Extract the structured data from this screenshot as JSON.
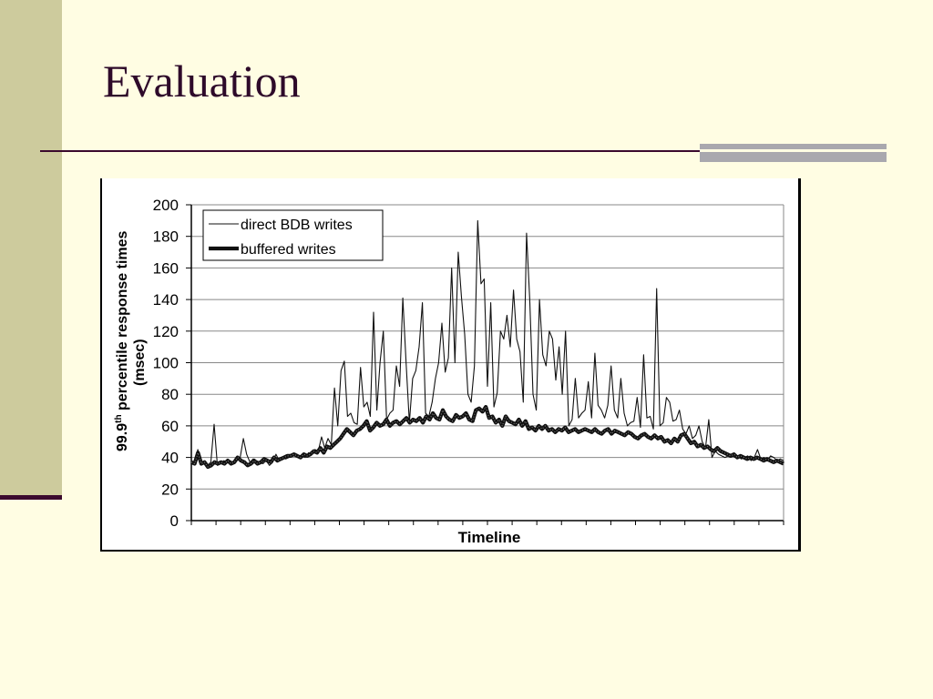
{
  "slide": {
    "title": "Evaluation"
  },
  "colors": {
    "background": "#FFFDE3",
    "band": "#CDCB9D",
    "accent": "#3B0A2E",
    "title": "#2E0A2A"
  },
  "chart_data": {
    "type": "line",
    "title": "",
    "xlabel": "Timeline",
    "ylabel_line1": "99.9",
    "ylabel_sup": "th",
    "ylabel_rest": " percentile response times",
    "ylabel_line2": "(msec)",
    "ylim": [
      0,
      200
    ],
    "yticks": [
      "0",
      "20",
      "40",
      "60",
      "80",
      "100",
      "120",
      "140",
      "160",
      "180",
      "200"
    ],
    "grid": true,
    "legend": "top-left",
    "x_ticks": 24,
    "series": [
      {
        "name": "direct BDB writes",
        "style": "thin",
        "values": [
          38,
          36,
          45,
          36,
          37,
          35,
          37,
          61,
          35,
          36,
          38,
          37,
          38,
          36,
          38,
          40,
          52,
          42,
          37,
          39,
          38,
          37,
          36,
          38,
          35,
          37,
          42,
          38,
          40,
          39,
          40,
          41,
          42,
          40,
          41,
          40,
          43,
          42,
          45,
          44,
          53,
          46,
          52,
          48,
          84,
          60,
          95,
          101,
          66,
          68,
          62,
          61,
          97,
          72,
          75,
          66,
          132,
          70,
          100,
          120,
          64,
          68,
          70,
          98,
          85,
          141,
          100,
          62,
          90,
          95,
          110,
          138,
          68,
          66,
          75,
          90,
          100,
          125,
          94,
          103,
          160,
          100,
          170,
          142,
          118,
          80,
          75,
          98,
          190,
          150,
          153,
          85,
          138,
          72,
          81,
          120,
          115,
          130,
          110,
          146,
          115,
          107,
          75,
          182,
          140,
          80,
          70,
          140,
          105,
          98,
          120,
          115,
          89,
          110,
          80,
          120,
          60,
          64,
          90,
          65,
          68,
          70,
          88,
          65,
          106,
          73,
          70,
          65,
          73,
          98,
          70,
          65,
          90,
          68,
          60,
          62,
          63,
          78,
          59,
          105,
          65,
          66,
          58,
          147,
          60,
          62,
          78,
          75,
          63,
          64,
          70,
          58,
          55,
          60,
          52,
          54,
          60,
          50,
          46,
          64,
          40,
          44,
          42,
          41,
          40,
          41,
          42,
          40,
          41,
          39,
          40,
          41,
          38,
          40,
          45,
          39,
          40,
          38,
          41,
          40,
          38,
          39,
          38
        ]
      },
      {
        "name": "buffered writes",
        "style": "thick",
        "values": [
          37,
          36,
          43,
          36,
          37,
          34,
          35,
          37,
          36,
          37,
          36,
          38,
          36,
          37,
          40,
          38,
          37,
          35,
          36,
          38,
          36,
          37,
          39,
          38,
          37,
          40,
          38,
          39,
          40,
          41,
          41,
          42,
          41,
          40,
          42,
          41,
          42,
          44,
          43,
          46,
          43,
          47,
          46,
          48,
          50,
          52,
          55,
          58,
          56,
          54,
          57,
          58,
          60,
          63,
          57,
          59,
          62,
          60,
          61,
          64,
          60,
          62,
          63,
          61,
          63,
          65,
          62,
          64,
          63,
          65,
          62,
          66,
          64,
          68,
          65,
          64,
          70,
          66,
          64,
          63,
          67,
          65,
          66,
          68,
          64,
          63,
          70,
          71,
          69,
          72,
          65,
          66,
          62,
          64,
          60,
          66,
          63,
          62,
          61,
          64,
          60,
          63,
          58,
          59,
          57,
          60,
          58,
          60,
          57,
          58,
          56,
          58,
          57,
          59,
          56,
          57,
          58,
          56,
          57,
          58,
          57,
          56,
          58,
          56,
          55,
          57,
          58,
          55,
          57,
          56,
          55,
          54,
          56,
          55,
          53,
          52,
          54,
          55,
          53,
          52,
          54,
          52,
          53,
          50,
          51,
          49,
          52,
          50,
          54,
          55,
          52,
          49,
          50,
          47,
          48,
          46,
          47,
          45,
          44,
          46,
          44,
          43,
          42,
          41,
          42,
          40,
          41,
          40,
          39,
          40,
          39,
          40,
          39,
          38,
          39,
          38,
          37,
          38,
          37,
          36
        ]
      }
    ]
  }
}
